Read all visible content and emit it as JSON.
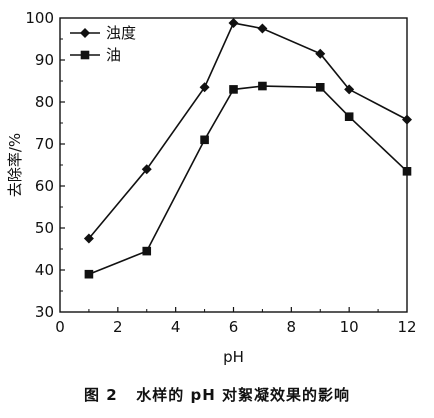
{
  "caption": "图 2   水样的 pH 对絮凝效果的影响",
  "chart_data": {
    "type": "line",
    "xlabel": "pH",
    "ylabel": "去除率/%",
    "xlim": [
      0,
      12
    ],
    "ylim": [
      30,
      100
    ],
    "xticks": [
      "0",
      "2",
      "4",
      "6",
      "8",
      "10",
      "12"
    ],
    "yticks": [
      "30",
      "40",
      "50",
      "60",
      "70",
      "80",
      "90",
      "100"
    ],
    "grid": false,
    "legend_position": "top-left",
    "series": [
      {
        "name": "浊度",
        "marker": "diamond",
        "color": "#111111",
        "x": [
          1,
          3,
          5,
          6,
          7,
          9,
          10,
          12
        ],
        "y": [
          47.5,
          64,
          83.5,
          98.8,
          97.5,
          91.5,
          83,
          75.8
        ]
      },
      {
        "name": "油",
        "marker": "square",
        "color": "#111111",
        "x": [
          1,
          3,
          5,
          6,
          7,
          9,
          10,
          12
        ],
        "y": [
          39,
          44.5,
          71,
          83,
          83.8,
          83.5,
          76.5,
          63.5
        ]
      }
    ]
  }
}
